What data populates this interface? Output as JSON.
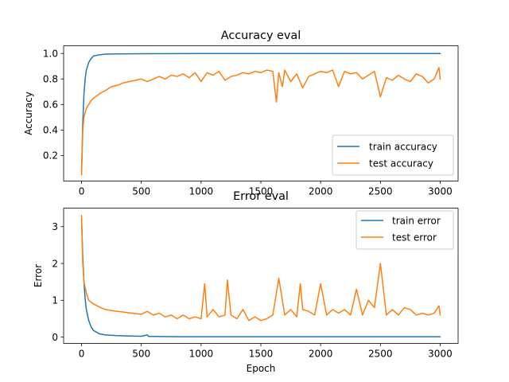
{
  "chart_data": [
    {
      "type": "line",
      "title": "Accuracy eval",
      "xlabel": "",
      "ylabel": "Accuracy",
      "xlim": [
        -150,
        3150
      ],
      "ylim": [
        0.0,
        1.06
      ],
      "xticks": [
        0,
        500,
        1000,
        1500,
        2000,
        2500,
        3000
      ],
      "xtick_labels": [
        "0",
        "500",
        "1000",
        "1500",
        "2000",
        "2500",
        "3000"
      ],
      "yticks": [
        0.2,
        0.4,
        0.6,
        0.8,
        1.0
      ],
      "ytick_labels": [
        "0.2",
        "0.4",
        "0.6",
        "0.8",
        "1.0"
      ],
      "legend_position": "lower-right",
      "series": [
        {
          "name": "train accuracy",
          "color": "#1f77b4",
          "x": [
            0,
            10,
            20,
            30,
            40,
            60,
            80,
            100,
            150,
            200,
            300,
            500,
            800,
            1200,
            1600,
            2000,
            2400,
            2800,
            3000
          ],
          "y": [
            0.08,
            0.45,
            0.68,
            0.8,
            0.87,
            0.93,
            0.96,
            0.98,
            0.99,
            0.995,
            0.997,
            0.998,
            0.999,
            1.0,
            1.0,
            1.0,
            1.0,
            1.0,
            1.0
          ]
        },
        {
          "name": "test accuracy",
          "color": "#ff7f0e",
          "x": [
            0,
            10,
            20,
            40,
            60,
            80,
            100,
            130,
            160,
            200,
            250,
            300,
            350,
            400,
            450,
            500,
            550,
            600,
            650,
            700,
            750,
            800,
            850,
            900,
            950,
            1000,
            1050,
            1100,
            1150,
            1200,
            1250,
            1300,
            1350,
            1400,
            1450,
            1500,
            1550,
            1600,
            1630,
            1650,
            1680,
            1700,
            1750,
            1800,
            1850,
            1900,
            1950,
            2000,
            2050,
            2100,
            2150,
            2200,
            2250,
            2300,
            2350,
            2400,
            2450,
            2500,
            2550,
            2600,
            2650,
            2700,
            2750,
            2800,
            2850,
            2900,
            2950,
            2990,
            3000
          ],
          "y": [
            0.05,
            0.4,
            0.5,
            0.57,
            0.6,
            0.63,
            0.65,
            0.67,
            0.69,
            0.71,
            0.74,
            0.75,
            0.77,
            0.78,
            0.79,
            0.8,
            0.78,
            0.8,
            0.82,
            0.8,
            0.83,
            0.82,
            0.84,
            0.81,
            0.85,
            0.78,
            0.85,
            0.83,
            0.86,
            0.79,
            0.82,
            0.83,
            0.85,
            0.84,
            0.86,
            0.85,
            0.87,
            0.86,
            0.62,
            0.85,
            0.74,
            0.87,
            0.78,
            0.84,
            0.73,
            0.82,
            0.84,
            0.86,
            0.85,
            0.87,
            0.74,
            0.86,
            0.84,
            0.85,
            0.8,
            0.83,
            0.86,
            0.66,
            0.81,
            0.79,
            0.83,
            0.8,
            0.78,
            0.84,
            0.82,
            0.77,
            0.8,
            0.89,
            0.8
          ]
        }
      ]
    },
    {
      "type": "line",
      "title": "Error eval",
      "xlabel": "Epoch",
      "ylabel": "Error",
      "xlim": [
        -150,
        3150
      ],
      "ylim": [
        -0.17,
        3.5
      ],
      "xticks": [
        0,
        500,
        1000,
        1500,
        2000,
        2500,
        3000
      ],
      "xtick_labels": [
        "0",
        "500",
        "1000",
        "1500",
        "2000",
        "2500",
        "3000"
      ],
      "yticks": [
        0,
        1,
        2,
        3
      ],
      "ytick_labels": [
        "0",
        "1",
        "2",
        "3"
      ],
      "legend_position": "upper-right",
      "series": [
        {
          "name": "train error",
          "color": "#1f77b4",
          "x": [
            0,
            10,
            20,
            30,
            40,
            60,
            80,
            100,
            150,
            200,
            300,
            400,
            500,
            550,
            560,
            600,
            800,
            1000,
            1500,
            2000,
            2500,
            3000
          ],
          "y": [
            3.2,
            2.2,
            1.5,
            1.05,
            0.75,
            0.45,
            0.28,
            0.18,
            0.09,
            0.06,
            0.04,
            0.03,
            0.025,
            0.06,
            0.02,
            0.02,
            0.01,
            0.01,
            0.01,
            0.01,
            0.01,
            0.01
          ]
        },
        {
          "name": "test error",
          "color": "#ff7f0e",
          "x": [
            0,
            10,
            20,
            40,
            60,
            80,
            100,
            130,
            160,
            200,
            250,
            300,
            350,
            400,
            450,
            500,
            550,
            600,
            650,
            700,
            750,
            800,
            850,
            900,
            950,
            1000,
            1030,
            1050,
            1100,
            1150,
            1200,
            1220,
            1250,
            1300,
            1350,
            1400,
            1450,
            1500,
            1550,
            1600,
            1650,
            1700,
            1750,
            1800,
            1830,
            1850,
            1900,
            1950,
            2000,
            2050,
            2100,
            2150,
            2200,
            2250,
            2300,
            2350,
            2400,
            2450,
            2500,
            2550,
            2600,
            2650,
            2700,
            2750,
            2800,
            2850,
            2900,
            2950,
            2990,
            3000
          ],
          "y": [
            3.3,
            2.0,
            1.5,
            1.2,
            1.0,
            0.95,
            0.9,
            0.85,
            0.8,
            0.75,
            0.72,
            0.7,
            0.68,
            0.66,
            0.64,
            0.62,
            0.7,
            0.6,
            0.65,
            0.55,
            0.6,
            0.5,
            0.6,
            0.5,
            0.55,
            0.5,
            1.45,
            0.55,
            0.75,
            0.55,
            0.6,
            1.55,
            0.6,
            0.5,
            0.75,
            0.45,
            0.55,
            0.45,
            0.5,
            0.6,
            1.6,
            0.6,
            0.75,
            0.55,
            1.45,
            0.75,
            0.7,
            0.6,
            1.45,
            0.6,
            0.75,
            0.65,
            0.75,
            0.6,
            1.3,
            0.6,
            1.0,
            0.8,
            2.0,
            0.6,
            0.75,
            0.6,
            0.8,
            0.75,
            0.6,
            0.65,
            0.6,
            0.65,
            0.85,
            0.6
          ]
        }
      ]
    }
  ]
}
